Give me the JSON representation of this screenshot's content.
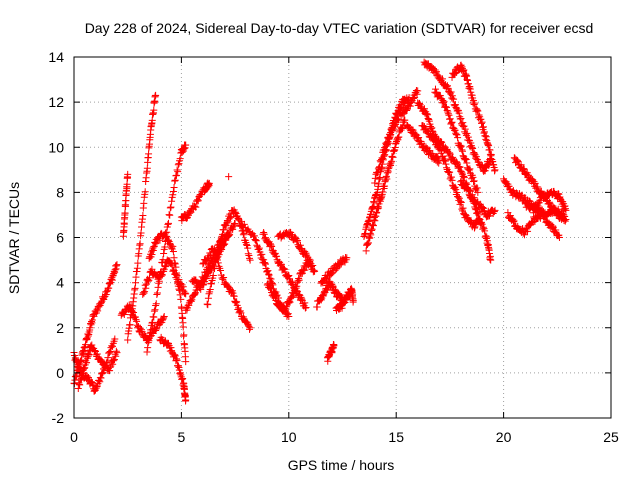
{
  "chart_data": {
    "type": "scatter",
    "title": "Day 228 of 2024, Sidereal Day-to-day VTEC variation (SDTVAR) for receiver ecsd",
    "xlabel": "GPS time / hours",
    "ylabel": "SDTVAR / TECUs",
    "xlim": [
      0,
      25
    ],
    "ylim": [
      -2,
      14
    ],
    "x_ticks": [
      0,
      5,
      10,
      15,
      20,
      25
    ],
    "x_tick_labels": [
      "0",
      "5",
      "10",
      "15",
      "20",
      "25"
    ],
    "y_ticks": [
      -2,
      0,
      2,
      4,
      6,
      8,
      10,
      12,
      14
    ],
    "y_tick_labels": [
      "-2",
      "0",
      "2",
      "4",
      "6",
      "8",
      "10",
      "12",
      "14"
    ],
    "grid": true,
    "marker": "+",
    "marker_color": "#ff0000",
    "series": [
      {
        "name": "SDTVAR",
        "tracks": [
          [
            [
              0.0,
              -0.5
            ],
            [
              0.3,
              0.5
            ],
            [
              0.6,
              1.5
            ],
            [
              0.9,
              2.5
            ],
            [
              1.3,
              3.2
            ],
            [
              1.7,
              4.0
            ],
            [
              2.0,
              4.8
            ]
          ],
          [
            [
              0.0,
              0.8
            ],
            [
              0.3,
              0.0
            ],
            [
              0.7,
              -0.3
            ],
            [
              1.0,
              -0.8
            ],
            [
              1.4,
              0.2
            ],
            [
              1.9,
              1.5
            ]
          ],
          [
            [
              0.2,
              -0.6
            ],
            [
              0.5,
              0.3
            ],
            [
              0.8,
              1.2
            ],
            [
              1.2,
              0.6
            ],
            [
              1.6,
              0.1
            ],
            [
              2.0,
              0.9
            ]
          ],
          [
            [
              2.3,
              6.0
            ],
            [
              2.4,
              7.5
            ],
            [
              2.5,
              8.8
            ]
          ],
          [
            [
              2.5,
              1.5
            ],
            [
              2.8,
              3.5
            ],
            [
              3.1,
              6.0
            ],
            [
              3.4,
              9.0
            ],
            [
              3.6,
              11.0
            ],
            [
              3.8,
              12.3
            ]
          ],
          [
            [
              2.2,
              2.5
            ],
            [
              2.6,
              3.0
            ],
            [
              3.0,
              2.0
            ],
            [
              3.4,
              1.5
            ],
            [
              3.8,
              2.0
            ],
            [
              4.2,
              2.5
            ]
          ],
          [
            [
              3.2,
              3.5
            ],
            [
              3.6,
              4.5
            ],
            [
              4.0,
              4.2
            ],
            [
              4.4,
              5.0
            ],
            [
              4.8,
              4.2
            ],
            [
              5.2,
              3.5
            ]
          ],
          [
            [
              3.4,
              1.0
            ],
            [
              3.8,
              3.0
            ],
            [
              4.2,
              5.5
            ],
            [
              4.6,
              8.0
            ],
            [
              5.0,
              9.8
            ],
            [
              5.2,
              10.1
            ]
          ],
          [
            [
              3.5,
              5.0
            ],
            [
              3.8,
              5.8
            ],
            [
              4.2,
              6.2
            ],
            [
              4.6,
              5.5
            ],
            [
              5.0,
              3.0
            ],
            [
              5.2,
              0.5
            ]
          ],
          [
            [
              4.0,
              1.5
            ],
            [
              4.4,
              1.2
            ],
            [
              4.8,
              0.5
            ],
            [
              5.1,
              -0.5
            ],
            [
              5.2,
              -1.2
            ]
          ],
          [
            [
              5.0,
              6.8
            ],
            [
              5.3,
              7.0
            ],
            [
              5.7,
              7.5
            ],
            [
              6.1,
              8.2
            ],
            [
              6.3,
              8.4
            ]
          ],
          [
            [
              5.2,
              2.8
            ],
            [
              5.6,
              3.5
            ],
            [
              6.0,
              4.2
            ],
            [
              6.4,
              5.0
            ],
            [
              6.8,
              5.8
            ],
            [
              7.2,
              6.2
            ]
          ],
          [
            [
              5.5,
              4.2
            ],
            [
              5.9,
              3.8
            ],
            [
              6.3,
              4.5
            ],
            [
              6.7,
              5.2
            ],
            [
              7.1,
              6.0
            ],
            [
              7.5,
              6.6
            ]
          ],
          [
            [
              6.2,
              3.0
            ],
            [
              6.6,
              5.0
            ],
            [
              7.0,
              6.5
            ],
            [
              7.4,
              7.2
            ],
            [
              7.8,
              6.5
            ],
            [
              8.2,
              5.0
            ]
          ],
          [
            [
              6.0,
              4.8
            ],
            [
              6.5,
              5.5
            ],
            [
              7.0,
              4.0
            ],
            [
              7.4,
              3.5
            ],
            [
              7.8,
              2.5
            ],
            [
              8.2,
              2.0
            ]
          ],
          [
            [
              7.2,
              8.7
            ]
          ],
          [
            [
              7.8,
              6.6
            ],
            [
              8.4,
              6.0
            ],
            [
              8.8,
              5.0
            ],
            [
              9.2,
              4.0
            ],
            [
              9.6,
              3.0
            ],
            [
              10.0,
              2.5
            ]
          ],
          [
            [
              8.8,
              6.2
            ],
            [
              9.2,
              5.5
            ],
            [
              9.6,
              4.8
            ],
            [
              10.0,
              4.2
            ],
            [
              10.4,
              3.5
            ],
            [
              10.8,
              2.9
            ]
          ],
          [
            [
              9.0,
              4.0
            ],
            [
              9.4,
              3.2
            ],
            [
              9.8,
              2.8
            ],
            [
              10.2,
              3.5
            ],
            [
              10.6,
              4.5
            ],
            [
              11.0,
              5.0
            ]
          ],
          [
            [
              9.5,
              6.0
            ],
            [
              10.0,
              6.2
            ],
            [
              10.4,
              5.8
            ],
            [
              10.8,
              5.2
            ],
            [
              11.2,
              4.5
            ]
          ],
          [
            [
              11.3,
              3.0
            ],
            [
              11.6,
              3.5
            ],
            [
              11.9,
              4.0
            ],
            [
              12.2,
              3.5
            ],
            [
              12.5,
              3.2
            ],
            [
              12.9,
              3.5
            ]
          ],
          [
            [
              11.5,
              4.0
            ],
            [
              11.9,
              4.4
            ],
            [
              12.3,
              4.8
            ],
            [
              12.7,
              5.1
            ]
          ],
          [
            [
              11.8,
              0.6
            ],
            [
              12.0,
              1.0
            ],
            [
              12.1,
              1.2
            ]
          ],
          [
            [
              12.2,
              2.8
            ],
            [
              12.5,
              3.0
            ],
            [
              12.9,
              3.8
            ],
            [
              13.0,
              3.2
            ]
          ],
          [
            [
              13.5,
              6.0
            ],
            [
              13.8,
              7.0
            ],
            [
              14.1,
              8.0
            ],
            [
              14.4,
              9.5
            ],
            [
              14.7,
              10.5
            ],
            [
              15.0,
              11.5
            ],
            [
              15.3,
              12.0
            ],
            [
              15.6,
              12.2
            ]
          ],
          [
            [
              13.6,
              5.5
            ],
            [
              13.9,
              6.5
            ],
            [
              14.2,
              7.5
            ],
            [
              14.5,
              8.5
            ],
            [
              14.8,
              9.5
            ],
            [
              15.1,
              10.5
            ],
            [
              15.4,
              11.2
            ]
          ],
          [
            [
              14.0,
              8.5
            ],
            [
              14.4,
              9.8
            ],
            [
              14.8,
              10.8
            ],
            [
              15.2,
              11.5
            ],
            [
              15.6,
              11.8
            ],
            [
              16.0,
              12.5
            ]
          ],
          [
            [
              15.5,
              11.0
            ],
            [
              15.9,
              10.5
            ],
            [
              16.3,
              10.0
            ],
            [
              16.7,
              9.6
            ],
            [
              17.0,
              9.4
            ]
          ],
          [
            [
              16.0,
              12.0
            ],
            [
              16.4,
              11.5
            ],
            [
              16.8,
              10.5
            ],
            [
              17.2,
              10.0
            ],
            [
              17.6,
              9.5
            ],
            [
              18.0,
              9.0
            ],
            [
              18.4,
              8.0
            ],
            [
              18.8,
              7.0
            ],
            [
              19.2,
              6.0
            ],
            [
              19.4,
              5.0
            ]
          ],
          [
            [
              16.2,
              11.0
            ],
            [
              16.6,
              10.5
            ],
            [
              17.0,
              10.0
            ],
            [
              17.4,
              9.0
            ],
            [
              17.8,
              8.0
            ],
            [
              18.2,
              7.0
            ],
            [
              18.6,
              6.5
            ],
            [
              18.9,
              6.8
            ]
          ],
          [
            [
              16.3,
              13.7
            ],
            [
              16.7,
              13.5
            ],
            [
              17.1,
              13.0
            ],
            [
              17.5,
              12.5
            ],
            [
              17.9,
              11.5
            ],
            [
              18.3,
              10.5
            ],
            [
              18.7,
              9.5
            ],
            [
              19.1,
              9.0
            ],
            [
              19.4,
              9.5
            ]
          ],
          [
            [
              16.8,
              12.5
            ],
            [
              17.2,
              12.0
            ],
            [
              17.6,
              11.0
            ],
            [
              18.0,
              10.0
            ],
            [
              18.4,
              9.0
            ],
            [
              18.8,
              8.0
            ]
          ],
          [
            [
              17.6,
              13.2
            ],
            [
              18.0,
              13.6
            ],
            [
              18.3,
              13.0
            ],
            [
              18.6,
              12.0
            ],
            [
              19.0,
              11.0
            ],
            [
              19.3,
              10.0
            ],
            [
              19.6,
              9.0
            ]
          ],
          [
            [
              18.0,
              8.5
            ],
            [
              18.4,
              8.0
            ],
            [
              18.8,
              7.5
            ],
            [
              19.2,
              7.0
            ],
            [
              19.6,
              7.2
            ]
          ],
          [
            [
              20.0,
              8.5
            ],
            [
              20.4,
              8.0
            ],
            [
              20.8,
              7.8
            ],
            [
              21.2,
              7.5
            ],
            [
              21.6,
              7.2
            ],
            [
              22.0,
              7.0
            ],
            [
              22.4,
              7.2
            ],
            [
              22.8,
              7.0
            ]
          ],
          [
            [
              20.5,
              9.5
            ],
            [
              20.9,
              9.0
            ],
            [
              21.3,
              8.5
            ],
            [
              21.7,
              8.0
            ],
            [
              22.1,
              7.5
            ],
            [
              22.5,
              7.0
            ],
            [
              22.9,
              6.8
            ]
          ],
          [
            [
              20.2,
              7.0
            ],
            [
              20.6,
              6.5
            ],
            [
              21.0,
              6.2
            ],
            [
              21.4,
              6.8
            ],
            [
              21.8,
              7.0
            ],
            [
              22.2,
              6.5
            ],
            [
              22.6,
              6.0
            ]
          ],
          [
            [
              21.0,
              7.5
            ],
            [
              21.4,
              7.2
            ],
            [
              21.8,
              7.8
            ],
            [
              22.2,
              8.0
            ],
            [
              22.6,
              7.8
            ],
            [
              22.9,
              7.2
            ]
          ]
        ]
      }
    ]
  }
}
